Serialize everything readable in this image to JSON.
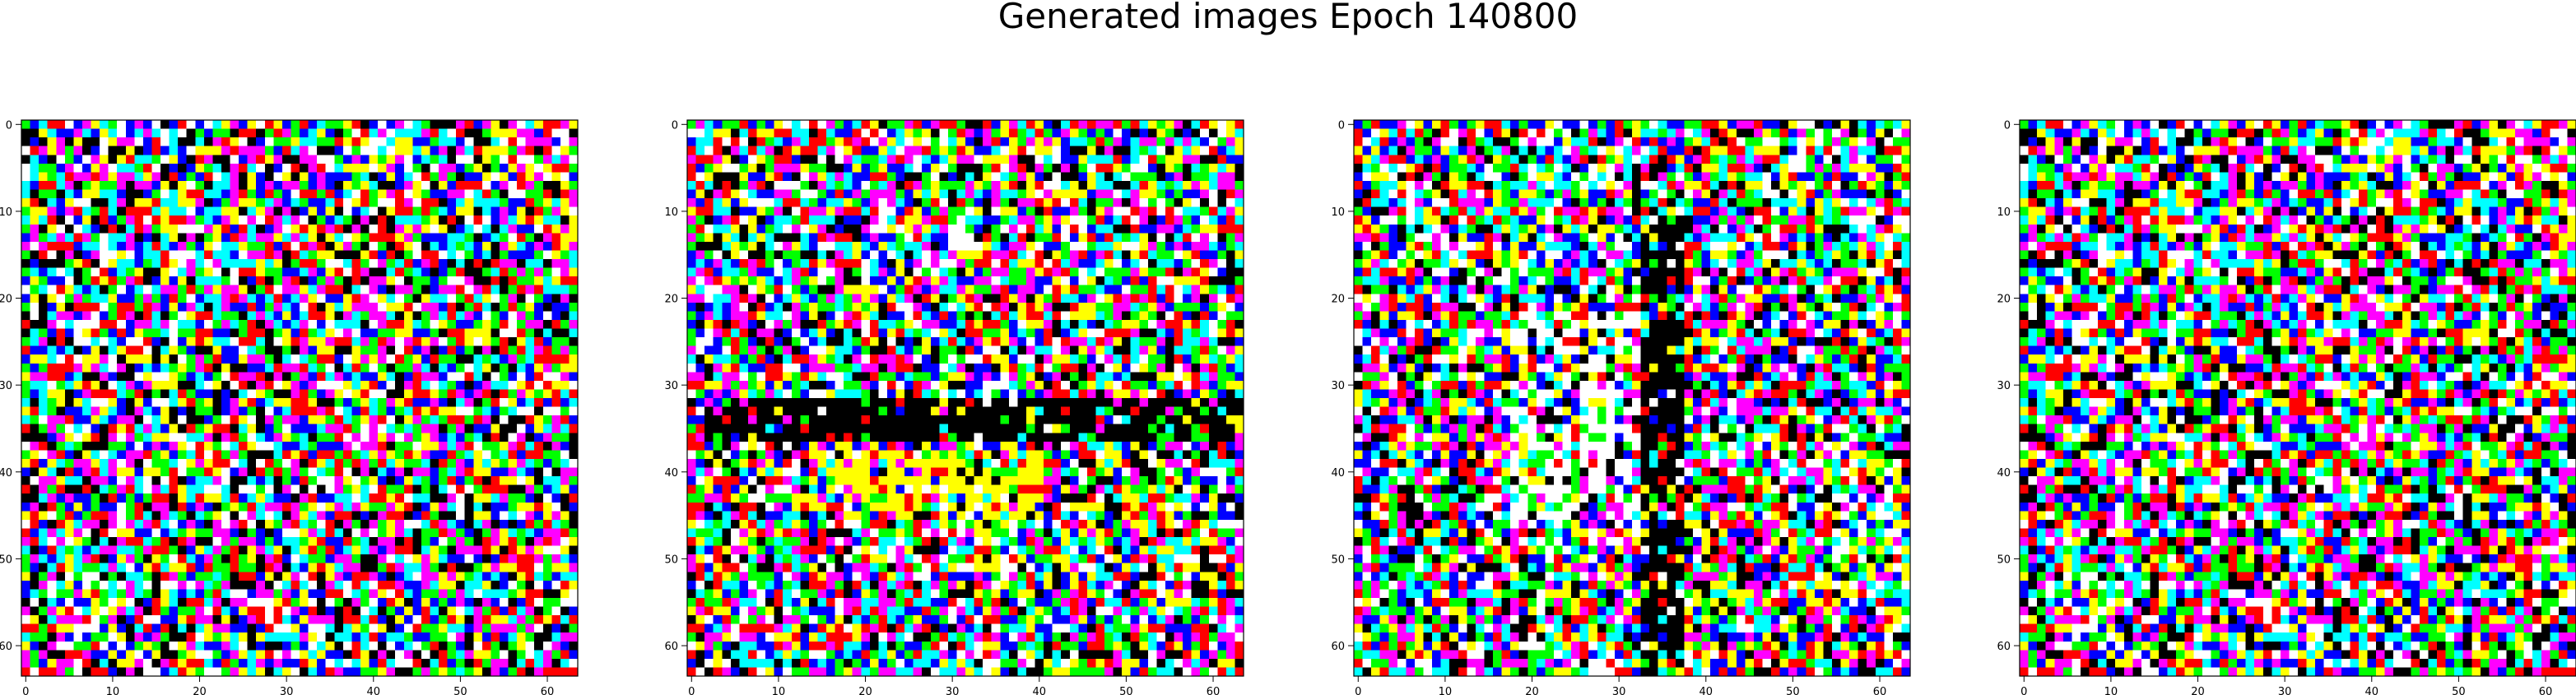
{
  "figure": {
    "title": "Generated images Epoch 140800"
  },
  "chart_data": [
    {
      "type": "heatmap",
      "content": "64x64 RGB noise image (saturated primary/secondary colors)",
      "grid_size": [
        64,
        64
      ],
      "seed": 11,
      "structure": "uniform noise",
      "xlim": [
        -0.5,
        63.5
      ],
      "ylim": [
        63.5,
        -0.5
      ],
      "x_ticks": [
        0,
        10,
        20,
        30,
        40,
        50,
        60
      ],
      "y_ticks": [
        0,
        10,
        20,
        30,
        40,
        50,
        60
      ],
      "grid": false
    },
    {
      "type": "heatmap",
      "content": "64x64 RGB noise image with dark horizontal band near rows 32-37 and yellow region near rows 38-45",
      "grid_size": [
        64,
        64
      ],
      "seed": 23,
      "structure": "horizontal band",
      "xlim": [
        -0.5,
        63.5
      ],
      "ylim": [
        63.5,
        -0.5
      ],
      "x_ticks": [
        0,
        10,
        20,
        30,
        40,
        50,
        60
      ],
      "y_ticks": [
        0,
        10,
        20,
        30,
        40,
        50,
        60
      ],
      "grid": false
    },
    {
      "type": "heatmap",
      "content": "64x64 RGB noise image with dark vertical band near columns 33-37 and white region left of it",
      "grid_size": [
        64,
        64
      ],
      "seed": 37,
      "structure": "vertical band",
      "xlim": [
        -0.5,
        63.5
      ],
      "ylim": [
        63.5,
        -0.5
      ],
      "x_ticks": [
        0,
        10,
        20,
        30,
        40,
        50,
        60
      ],
      "y_ticks": [
        0,
        10,
        20,
        30,
        40,
        50,
        60
      ],
      "grid": false
    },
    {
      "type": "heatmap",
      "content": "64x64 RGB noise image (saturated primary/secondary colors)",
      "grid_size": [
        64,
        64
      ],
      "seed": 11,
      "structure": "uniform noise",
      "xlim": [
        -0.5,
        63.5
      ],
      "ylim": [
        63.5,
        -0.5
      ],
      "x_ticks": [
        0,
        10,
        20,
        30,
        40,
        50,
        60
      ],
      "y_ticks": [
        0,
        10,
        20,
        30,
        40,
        50,
        60
      ],
      "grid": false
    }
  ],
  "palette": [
    "#ff0000",
    "#00ff00",
    "#0000ff",
    "#ffff00",
    "#ff00ff",
    "#00ffff",
    "#ffffff",
    "#000000"
  ]
}
